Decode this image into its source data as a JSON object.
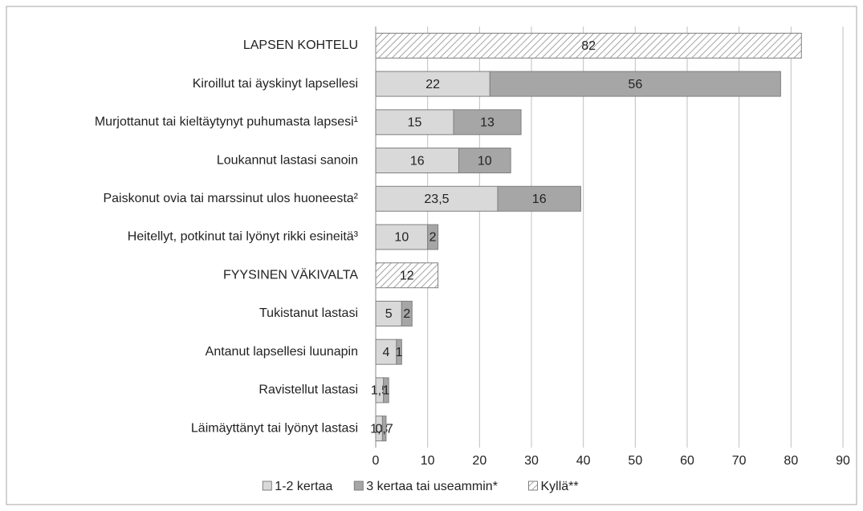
{
  "chart_data": {
    "type": "bar",
    "orientation": "horizontal",
    "stacked": true,
    "categories": [
      "LAPSEN KOHTELU",
      "Kiroillut tai äyskinyt lapsellesi",
      "Murjottanut tai kieltäytynyt puhumasta lapsesi¹",
      "Loukannut lastasi sanoin",
      "Paiskonut ovia tai marssinut ulos huoneesta²",
      "Heitellyt, potkinut tai lyönyt rikki esineitä³",
      "FYYSINEN VÄKIVALTA",
      "Tukistanut lastasi",
      "Antanut lapsellesi luunapin",
      "Ravistellut lastasi",
      "Läimäyttänyt tai lyönyt lastasi"
    ],
    "series": [
      {
        "name": "1-2 kertaa",
        "color": "#d9d9d9",
        "values": [
          null,
          22,
          15,
          16,
          23.5,
          10,
          null,
          5,
          4,
          1.5,
          1.3
        ],
        "value_labels": [
          null,
          "22",
          "15",
          "16",
          "23,5",
          "10",
          null,
          "5",
          "4",
          "1,5",
          "1,3"
        ]
      },
      {
        "name": "3 kertaa tai useammin*",
        "color": "#a6a6a6",
        "values": [
          null,
          56,
          13,
          10,
          16,
          2,
          null,
          2,
          1,
          1,
          0.7
        ],
        "value_labels": [
          null,
          "56",
          "13",
          "10",
          "16",
          "2",
          null,
          "2",
          "1",
          "1",
          "0,7"
        ]
      },
      {
        "name": "Kyllä**",
        "color": "hatch",
        "values": [
          82,
          null,
          null,
          null,
          null,
          null,
          12,
          null,
          null,
          null,
          null
        ]
      }
    ],
    "xlim": [
      0,
      90
    ],
    "xticks": [
      0,
      10,
      20,
      30,
      40,
      50,
      60,
      70,
      80,
      90
    ],
    "grid": true,
    "legend": "bottom"
  }
}
